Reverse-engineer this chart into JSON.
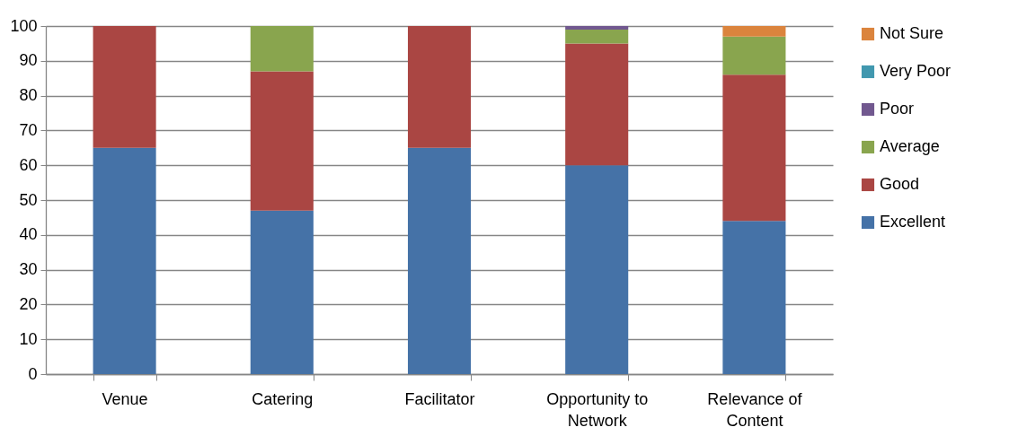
{
  "chart_data": {
    "type": "bar",
    "stacked": true,
    "categories": [
      "Venue",
      "Catering",
      "Facilitator",
      "Opportunity to Network",
      "Relevance of Content"
    ],
    "series": [
      {
        "name": "Excellent",
        "color": "#4572a7",
        "values": [
          65,
          47,
          65,
          60,
          44
        ]
      },
      {
        "name": "Good",
        "color": "#aa4643",
        "values": [
          35,
          40,
          35,
          35,
          42
        ]
      },
      {
        "name": "Average",
        "color": "#89a54e",
        "values": [
          0,
          13,
          0,
          4,
          11
        ]
      },
      {
        "name": "Poor",
        "color": "#71588f",
        "values": [
          0,
          0,
          0,
          1,
          0
        ]
      },
      {
        "name": "Very Poor",
        "color": "#4198af",
        "values": [
          0,
          0,
          0,
          0,
          0
        ]
      },
      {
        "name": "Not Sure",
        "color": "#db843d",
        "values": [
          0,
          0,
          0,
          0,
          3
        ]
      }
    ],
    "ylim": [
      0,
      100
    ],
    "yticks": [
      0,
      10,
      20,
      30,
      40,
      50,
      60,
      70,
      80,
      90,
      100
    ],
    "grid": "y",
    "legend": "right"
  }
}
